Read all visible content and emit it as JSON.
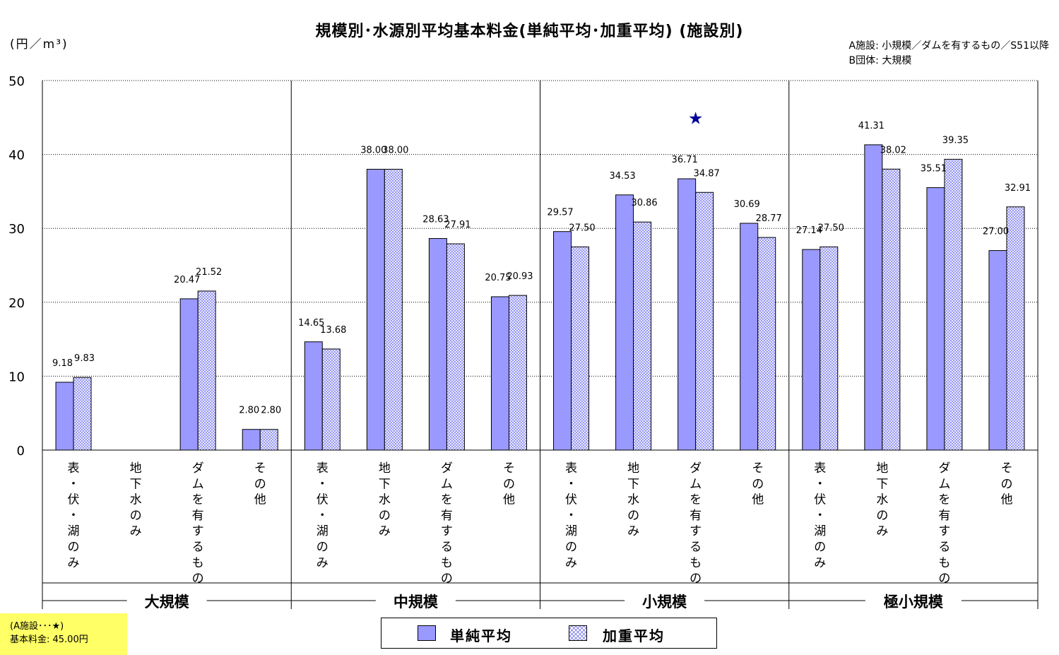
{
  "chart_data": {
    "type": "bar",
    "title": "規模別･水源別平均基本料金(単純平均･加重平均) (施設別)",
    "ylabel": "(円／m³)",
    "ylim": [
      0,
      50
    ],
    "yticks": [
      "0",
      "10",
      "20",
      "30",
      "40",
      "50"
    ],
    "groups": [
      {
        "label": "大規模",
        "categories": [
          "表・伏・湖のみ",
          "地下水のみ",
          "ダムを有するもの",
          "その他"
        ]
      },
      {
        "label": "中規模",
        "categories": [
          "表・伏・湖のみ",
          "地下水のみ",
          "ダムを有するもの",
          "その他"
        ]
      },
      {
        "label": "小規模",
        "categories": [
          "表・伏・湖のみ",
          "地下水のみ",
          "ダムを有するもの",
          "その他"
        ]
      },
      {
        "label": "極小規模",
        "categories": [
          "表・伏・湖のみ",
          "地下水のみ",
          "ダムを有するもの",
          "その他"
        ]
      }
    ],
    "series": [
      {
        "name": "単純平均",
        "color": "#9999ff",
        "values": [
          9.18,
          null,
          20.47,
          2.8,
          14.65,
          38.0,
          28.63,
          20.75,
          29.57,
          34.53,
          36.71,
          30.69,
          27.14,
          41.31,
          35.51,
          27.0
        ],
        "labels": [
          "9.18",
          "",
          "20.47",
          "2.80",
          "14.65",
          "38.00",
          "28.63",
          "20.75",
          "29.57",
          "34.53",
          "36.71",
          "30.69",
          "27.14",
          "41.31",
          "35.51",
          "27.00"
        ]
      },
      {
        "name": "加重平均",
        "color": "#ccccff",
        "values": [
          9.83,
          null,
          21.52,
          2.8,
          13.68,
          38.0,
          27.91,
          20.93,
          27.5,
          30.86,
          34.87,
          28.77,
          27.5,
          38.02,
          39.35,
          32.91
        ],
        "labels": [
          "9.83",
          "",
          "21.52",
          "2.80",
          "13.68",
          "38.00",
          "27.91",
          "20.93",
          "27.50",
          "30.86",
          "34.87",
          "28.77",
          "27.50",
          "38.02",
          "39.35",
          "32.91"
        ]
      }
    ],
    "marker": {
      "symbol": "★",
      "group_index": 2,
      "category_index": 2,
      "value": 45.0,
      "color": "#000099"
    },
    "grid": true,
    "legend": "bottom-center"
  },
  "notes": {
    "line1": "A施設: 小規模／ダムを有するもの／S51以降",
    "line2": "B団体: 大規模"
  },
  "yellow_box": {
    "line1": "(A施設･･･★)",
    "line2": "基本料金: 45.00円"
  },
  "legend": {
    "simple": "単純平均",
    "weighted": "加重平均"
  }
}
